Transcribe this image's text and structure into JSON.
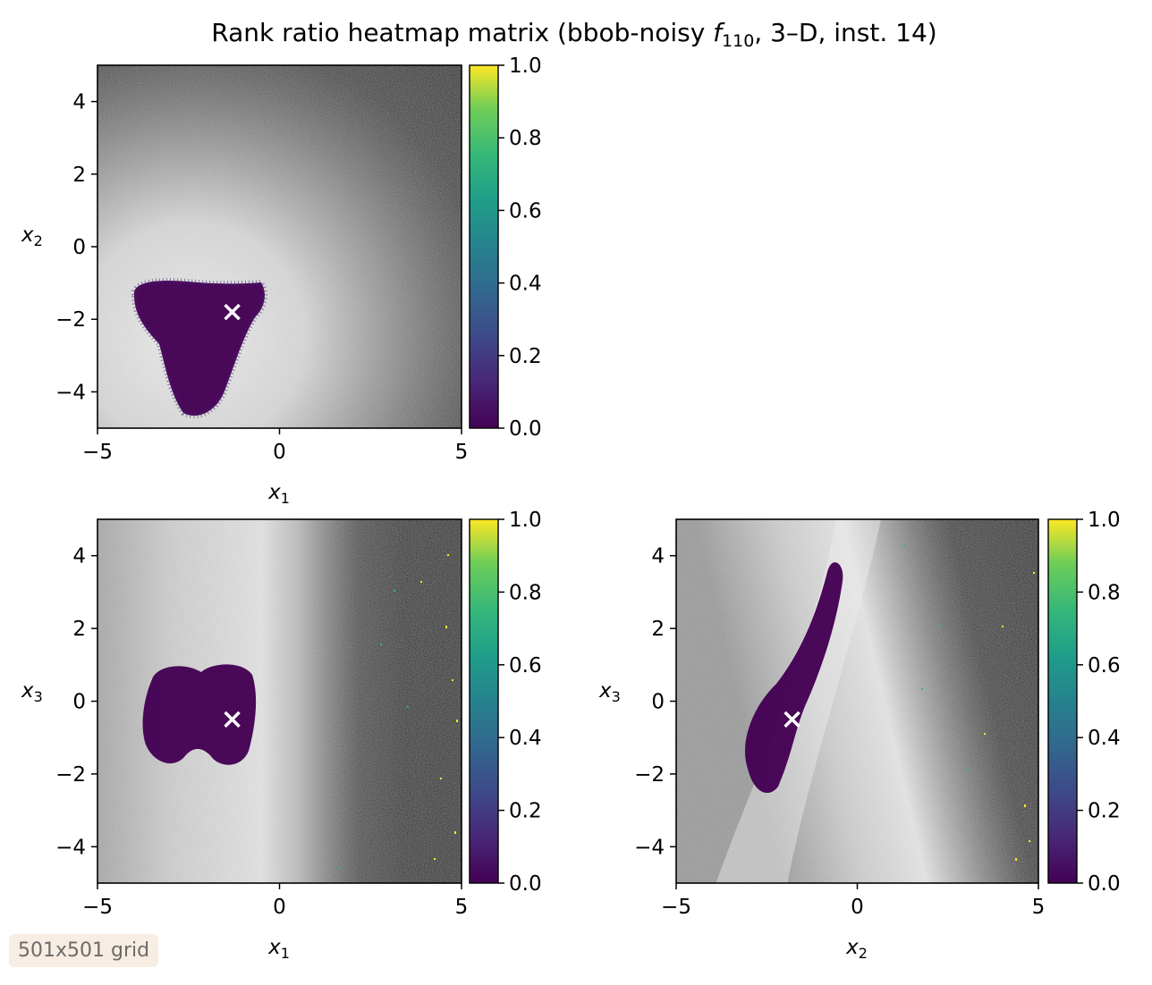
{
  "title_main": "Rank ratio heatmap matrix (bbob-noisy ",
  "title_f": "f",
  "title_sub": "110",
  "title_rest": ", 3–D, inst. 14)",
  "badge": "501x501 grid",
  "colors": {
    "background_dark": "#262626",
    "background_light": "#e6e6e6",
    "basin": "#440154",
    "marker": "#ffffff"
  },
  "chart_data": [
    {
      "type": "heatmap",
      "id": "x1-x2",
      "xlabel": "x",
      "xlabel_sub": "1",
      "ylabel": "x",
      "ylabel_sub": "2",
      "xlim": [
        -5,
        5
      ],
      "ylim": [
        -5,
        5
      ],
      "xticks": [
        -5,
        0,
        5
      ],
      "xtick_labels": [
        "−5",
        "0",
        "5"
      ],
      "yticks": [
        -4,
        -2,
        0,
        2,
        4
      ],
      "ytick_labels": [
        "−4",
        "−2",
        "0",
        "2",
        "4"
      ],
      "colormap": "viridis",
      "colorbar": {
        "range": [
          0,
          1
        ],
        "ticks": [
          0,
          0.2,
          0.4,
          0.6,
          0.8,
          1.0
        ],
        "tick_labels": [
          "0.0",
          "0.2",
          "0.4",
          "0.6",
          "0.8",
          "1.0"
        ]
      },
      "optimum": {
        "x": -1.3,
        "y": -1.8
      }
    },
    {
      "type": "heatmap",
      "id": "x1-x3",
      "xlabel": "x",
      "xlabel_sub": "1",
      "ylabel": "x",
      "ylabel_sub": "3",
      "xlim": [
        -5,
        5
      ],
      "ylim": [
        -5,
        5
      ],
      "xticks": [
        -5,
        0,
        5
      ],
      "xtick_labels": [
        "−5",
        "0",
        "5"
      ],
      "yticks": [
        -4,
        -2,
        0,
        2,
        4
      ],
      "ytick_labels": [
        "−4",
        "−2",
        "0",
        "2",
        "4"
      ],
      "colormap": "viridis",
      "colorbar": {
        "range": [
          0,
          1
        ],
        "ticks": [
          0,
          0.2,
          0.4,
          0.6,
          0.8,
          1.0
        ],
        "tick_labels": [
          "0.0",
          "0.2",
          "0.4",
          "0.6",
          "0.8",
          "1.0"
        ]
      },
      "optimum": {
        "x": -1.3,
        "y": -0.5
      }
    },
    {
      "type": "heatmap",
      "id": "x2-x3",
      "xlabel": "x",
      "xlabel_sub": "2",
      "ylabel": "x",
      "ylabel_sub": "3",
      "xlim": [
        -5,
        5
      ],
      "ylim": [
        -5,
        5
      ],
      "xticks": [
        -5,
        0,
        5
      ],
      "xtick_labels": [
        "−5",
        "0",
        "5"
      ],
      "yticks": [
        -4,
        -2,
        0,
        2,
        4
      ],
      "ytick_labels": [
        "−4",
        "−2",
        "0",
        "2",
        "4"
      ],
      "colormap": "viridis",
      "colorbar": {
        "range": [
          0,
          1
        ],
        "ticks": [
          0,
          0.2,
          0.4,
          0.6,
          0.8,
          1.0
        ],
        "tick_labels": [
          "0.0",
          "0.2",
          "0.4",
          "0.6",
          "0.8",
          "1.0"
        ]
      },
      "optimum": {
        "x": -1.8,
        "y": -0.5
      }
    }
  ]
}
